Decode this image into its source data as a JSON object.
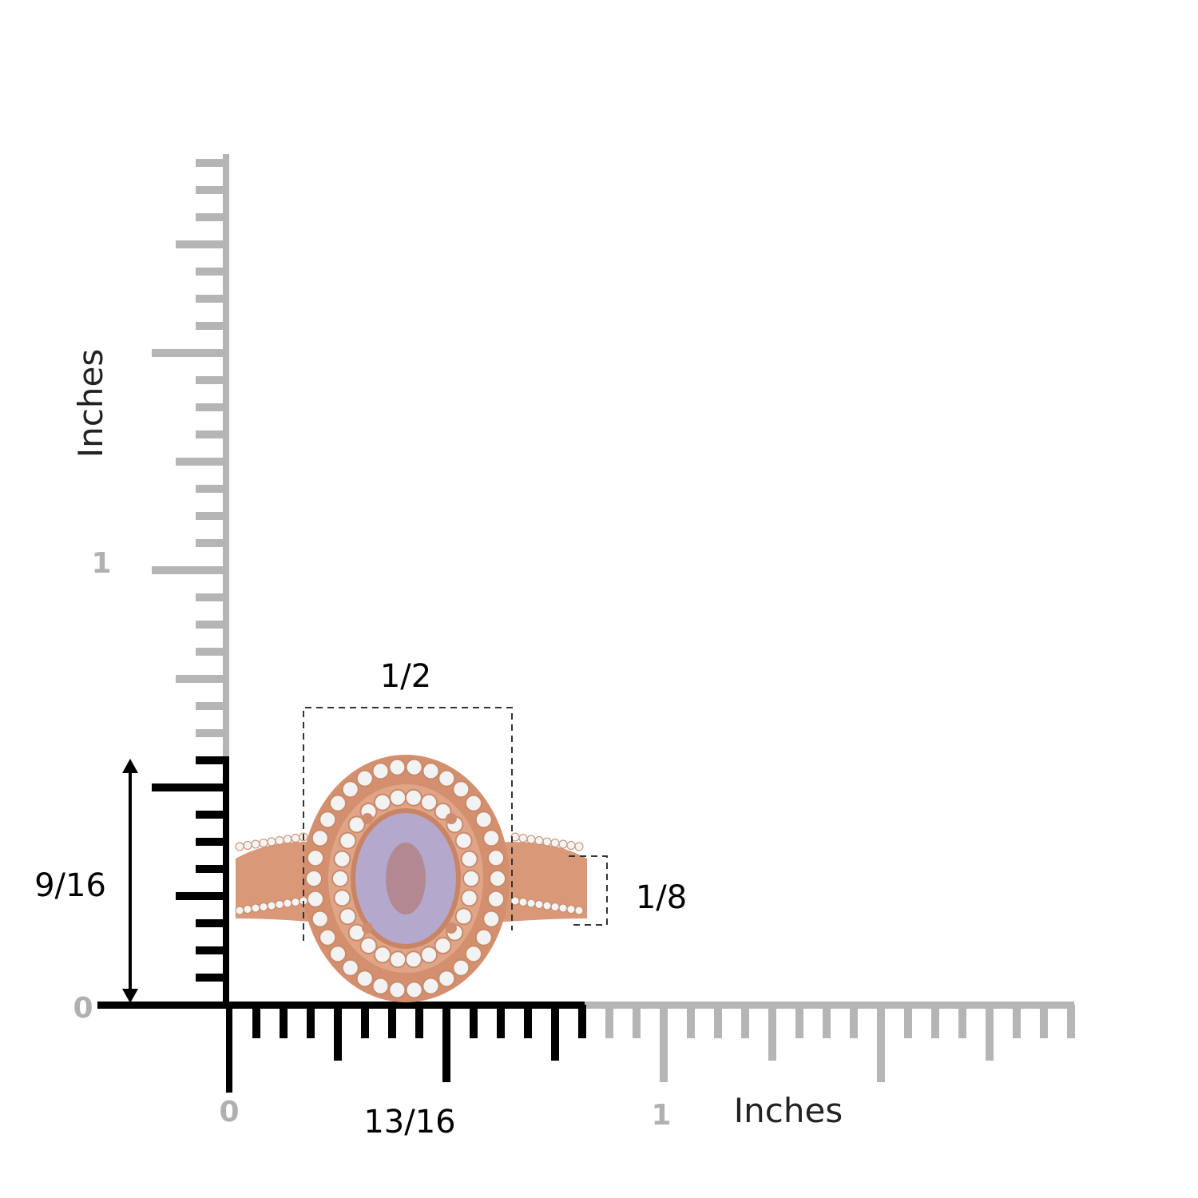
{
  "vertical_ruler": {
    "title": "Inches",
    "labels": [
      "1",
      "0"
    ]
  },
  "horizontal_ruler": {
    "title": "Inches",
    "labels": [
      "0",
      "1"
    ]
  },
  "dimensions": {
    "top_width": "1/2",
    "height": "9/16",
    "band_width": "1/8",
    "length": "13/16"
  }
}
